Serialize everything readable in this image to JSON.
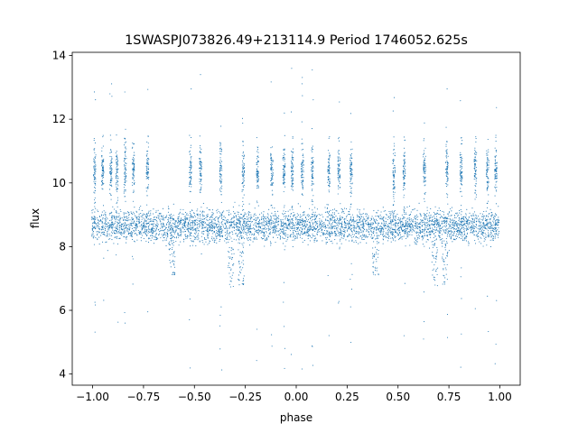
{
  "chart_data": {
    "type": "scatter",
    "title": "1SWASPJ073826.49+213114.9 Period 1746052.625s",
    "xlabel": "phase",
    "ylabel": "flux",
    "xlim": [
      -1.1,
      1.1
    ],
    "ylim": [
      3.65,
      14.1
    ],
    "xticks": [
      -1.0,
      -0.75,
      -0.5,
      -0.25,
      0.0,
      0.25,
      0.5,
      0.75,
      1.0
    ],
    "xtick_labels": [
      "−1.00",
      "−0.75",
      "−0.50",
      "−0.25",
      "0.00",
      "0.25",
      "0.50",
      "0.75",
      "1.00"
    ],
    "yticks": [
      4,
      6,
      8,
      10,
      12,
      14
    ],
    "ytick_labels": [
      "4",
      "6",
      "8",
      "10",
      "12",
      "14"
    ],
    "grid": false,
    "legend": "none",
    "point_color": "#1f77b4",
    "series": [
      {
        "description_of_distribution": "folded light curve; phase range -1 to 1, mirrored every 1.0 in phase",
        "main_band": {
          "center": 8.65,
          "spread": 0.35
        },
        "upper_band": {
          "center": 10.4,
          "spread": 0.45
        },
        "clusters": [
          {
            "phase": -0.99,
            "band": "upper"
          },
          {
            "phase": -0.95,
            "band": "upper"
          },
          {
            "phase": -0.91,
            "band": "upper"
          },
          {
            "phase": -0.88,
            "band": "upper"
          },
          {
            "phase": -0.84,
            "band": "upper"
          },
          {
            "phase": -0.8,
            "band": "upper"
          },
          {
            "phase": -0.73,
            "band": "upper"
          },
          {
            "phase": -0.52,
            "band": "upper"
          },
          {
            "phase": -0.47,
            "band": "upper"
          },
          {
            "phase": -0.37,
            "band": "upper"
          },
          {
            "phase": -0.26,
            "band": "upper"
          },
          {
            "phase": -0.19,
            "band": "upper"
          },
          {
            "phase": -0.12,
            "band": "upper"
          },
          {
            "phase": -0.06,
            "band": "upper"
          },
          {
            "phase": -0.02,
            "band": "upper"
          },
          {
            "phase": 0.03,
            "band": "upper"
          },
          {
            "phase": 0.08,
            "band": "upper"
          },
          {
            "phase": 0.16,
            "band": "upper"
          },
          {
            "phase": 0.21,
            "band": "upper"
          },
          {
            "phase": 0.27,
            "band": "upper"
          },
          {
            "phase": 0.48,
            "band": "upper"
          },
          {
            "phase": 0.53,
            "band": "upper"
          },
          {
            "phase": 0.63,
            "band": "upper"
          },
          {
            "phase": 0.74,
            "band": "upper"
          },
          {
            "phase": 0.81,
            "band": "upper"
          },
          {
            "phase": 0.88,
            "band": "upper"
          },
          {
            "phase": 0.94,
            "band": "upper"
          },
          {
            "phase": 0.98,
            "band": "upper"
          }
        ],
        "low_dips": [
          {
            "phase": -0.61,
            "min": 7.1
          },
          {
            "phase": -0.32,
            "min": 6.7
          },
          {
            "phase": -0.27,
            "min": 6.8
          },
          {
            "phase": 0.39,
            "min": 7.1
          },
          {
            "phase": 0.68,
            "min": 6.7
          },
          {
            "phase": 0.73,
            "min": 6.8
          }
        ],
        "outlier_range": [
          4.1,
          13.6
        ]
      }
    ]
  }
}
